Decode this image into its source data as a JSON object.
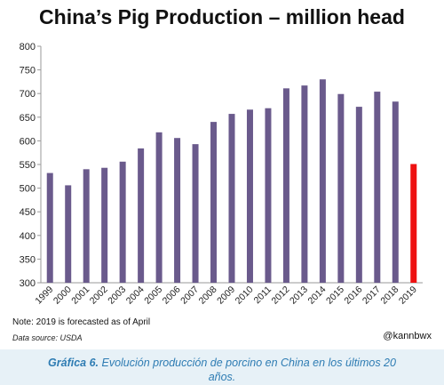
{
  "chart_data": {
    "type": "bar",
    "title": "China’s Pig Production – million head",
    "categories": [
      "1999",
      "2000",
      "2001",
      "2002",
      "2003",
      "2004",
      "2005",
      "2006",
      "2007",
      "2008",
      "2009",
      "2010",
      "2011",
      "2012",
      "2013",
      "2014",
      "2015",
      "2016",
      "2017",
      "2018",
      "2019"
    ],
    "values": [
      532,
      506,
      540,
      543,
      556,
      584,
      618,
      606,
      593,
      640,
      657,
      666,
      669,
      711,
      717,
      730,
      699,
      672,
      704,
      683,
      551
    ],
    "ylim": [
      300,
      800
    ],
    "yticks": [
      300,
      350,
      400,
      450,
      500,
      550,
      600,
      650,
      700,
      750,
      800
    ],
    "grid": false,
    "colors": {
      "bar": "#6a5a8c",
      "highlight": "#ee1111"
    },
    "highlight_category": "2019"
  },
  "notes": {
    "forecast": "Note: 2019 is forecasted as of April",
    "source": "Data source: USDA",
    "handle": "@kannbwx"
  },
  "caption": {
    "lead": "Gráfica 6.",
    "text": " Evolución producción de porcino en China en los últimos 20 años."
  }
}
